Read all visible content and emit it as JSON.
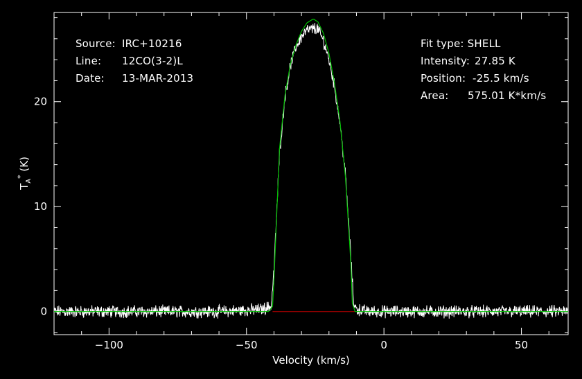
{
  "annotations": {
    "left": [
      {
        "label": "Source:",
        "value": "IRC+10216"
      },
      {
        "label": "Line:",
        "value": "12CO(3-2)L"
      },
      {
        "label": "Date:",
        "value": "13-MAR-2013"
      }
    ],
    "right": [
      {
        "label": "Fit type:",
        "value": "SHELL"
      },
      {
        "label": "Intensity:",
        "value": "27.85 K"
      },
      {
        "label": "Position:",
        "value": "-25.5 km/s"
      },
      {
        "label": "Area:",
        "value": "575.01 K*km/s"
      }
    ]
  },
  "colors": {
    "background": "#000000",
    "axes": "#ffffff",
    "spectrum": "#ffffff",
    "fit": "#00c000",
    "baseline": "#c00000"
  },
  "chart_data": {
    "type": "line",
    "title": "",
    "xlabel": "Velocity (km/s)",
    "ylabel": "T_A* (K)",
    "xlim": [
      -120,
      67
    ],
    "ylim": [
      -2.2,
      28.5
    ],
    "x_ticks": [
      -100,
      -50,
      0,
      50
    ],
    "x_tick_labels": [
      "−100",
      "−50",
      "0",
      "50"
    ],
    "y_ticks": [
      0,
      10,
      20
    ],
    "y_tick_labels": [
      "0",
      "10",
      "20"
    ],
    "grid": false,
    "legend": "none",
    "series": [
      {
        "role": "observed spectrum",
        "x": [
          -120,
          -100,
          -80,
          -60,
          -45,
          -41,
          -40,
          -38,
          -36,
          -34,
          -32,
          -30,
          -28,
          -26,
          -25,
          -24,
          -22,
          -20,
          -18,
          -16,
          -14,
          -12,
          -11,
          -10,
          -5,
          0,
          20,
          40,
          67
        ],
        "y": [
          0,
          0,
          0,
          0,
          0.2,
          0.5,
          4.0,
          15.0,
          20.5,
          23.5,
          25.2,
          26.2,
          26.8,
          26.9,
          27.0,
          26.9,
          25.8,
          24.0,
          21.5,
          18.0,
          13.0,
          5.0,
          0.8,
          0.2,
          0,
          0,
          0,
          0,
          0
        ]
      },
      {
        "role": "shell fit",
        "x": [
          -120,
          -42,
          -40.5,
          -40,
          -38,
          -36,
          -34,
          -32,
          -30,
          -28,
          -26,
          -25.5,
          -24,
          -22,
          -20,
          -18,
          -16,
          -14,
          -12,
          -11.5,
          -10.5,
          67
        ],
        "y": [
          0,
          0,
          0.5,
          3.0,
          15.5,
          20.6,
          23.6,
          25.4,
          26.7,
          27.5,
          27.84,
          27.85,
          27.6,
          26.5,
          24.6,
          21.8,
          18.1,
          12.8,
          4.5,
          0.8,
          0,
          0
        ]
      },
      {
        "role": "baseline window",
        "x": [
          -40.5,
          -10.5
        ],
        "y": [
          0,
          0
        ]
      }
    ]
  }
}
